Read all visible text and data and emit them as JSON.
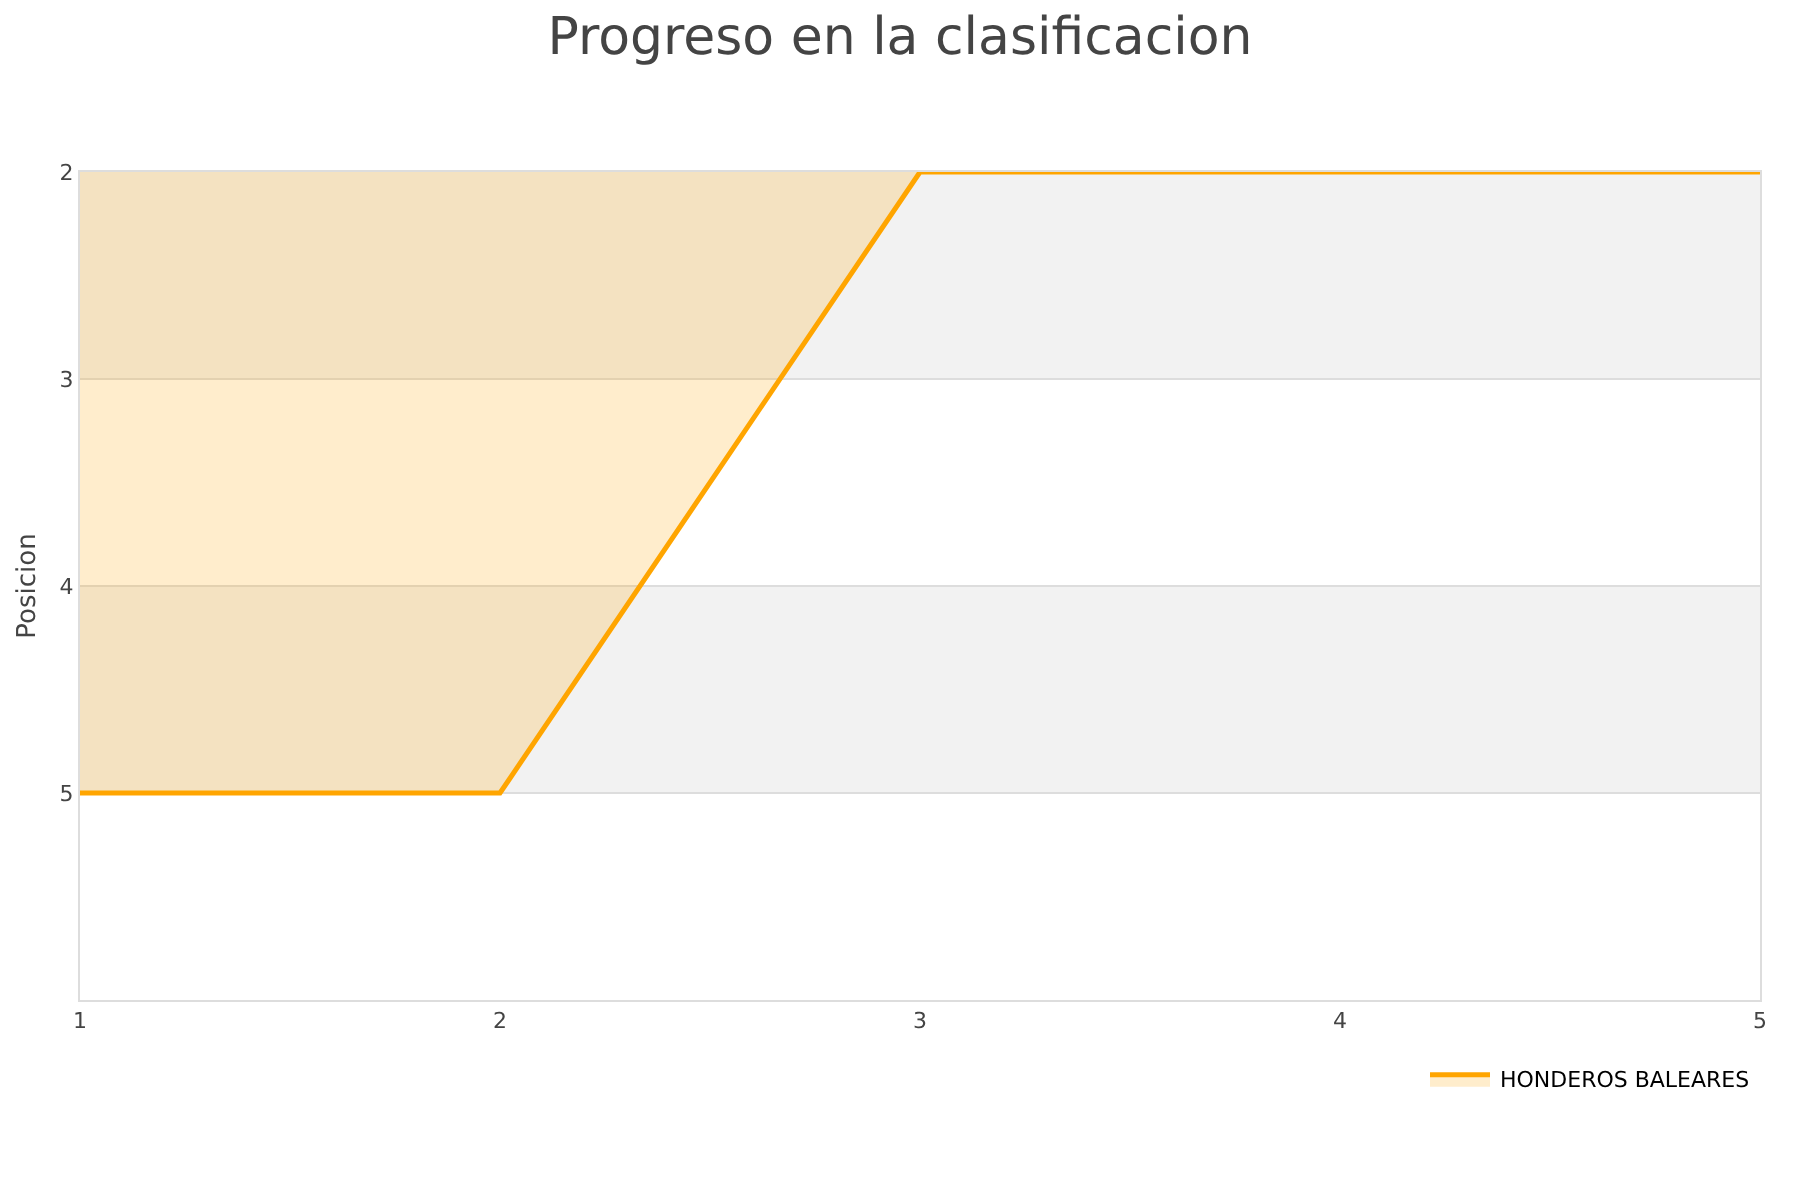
{
  "chart_data": {
    "type": "area",
    "title": "Progreso en la clasificacion",
    "ylabel": "Posicion",
    "x": [
      1,
      2,
      3,
      4,
      5
    ],
    "series": [
      {
        "name": "HONDEROS BALEARES",
        "color": "#ffa500",
        "values": [
          5,
          5,
          2,
          2,
          2
        ]
      }
    ],
    "xlim": [
      1,
      5
    ],
    "xticks": [
      1,
      2,
      3,
      4,
      5
    ],
    "ylim": [
      6,
      2
    ],
    "yticks": [
      2,
      3,
      4,
      5
    ],
    "grid": "y",
    "legend": "bottom right"
  }
}
